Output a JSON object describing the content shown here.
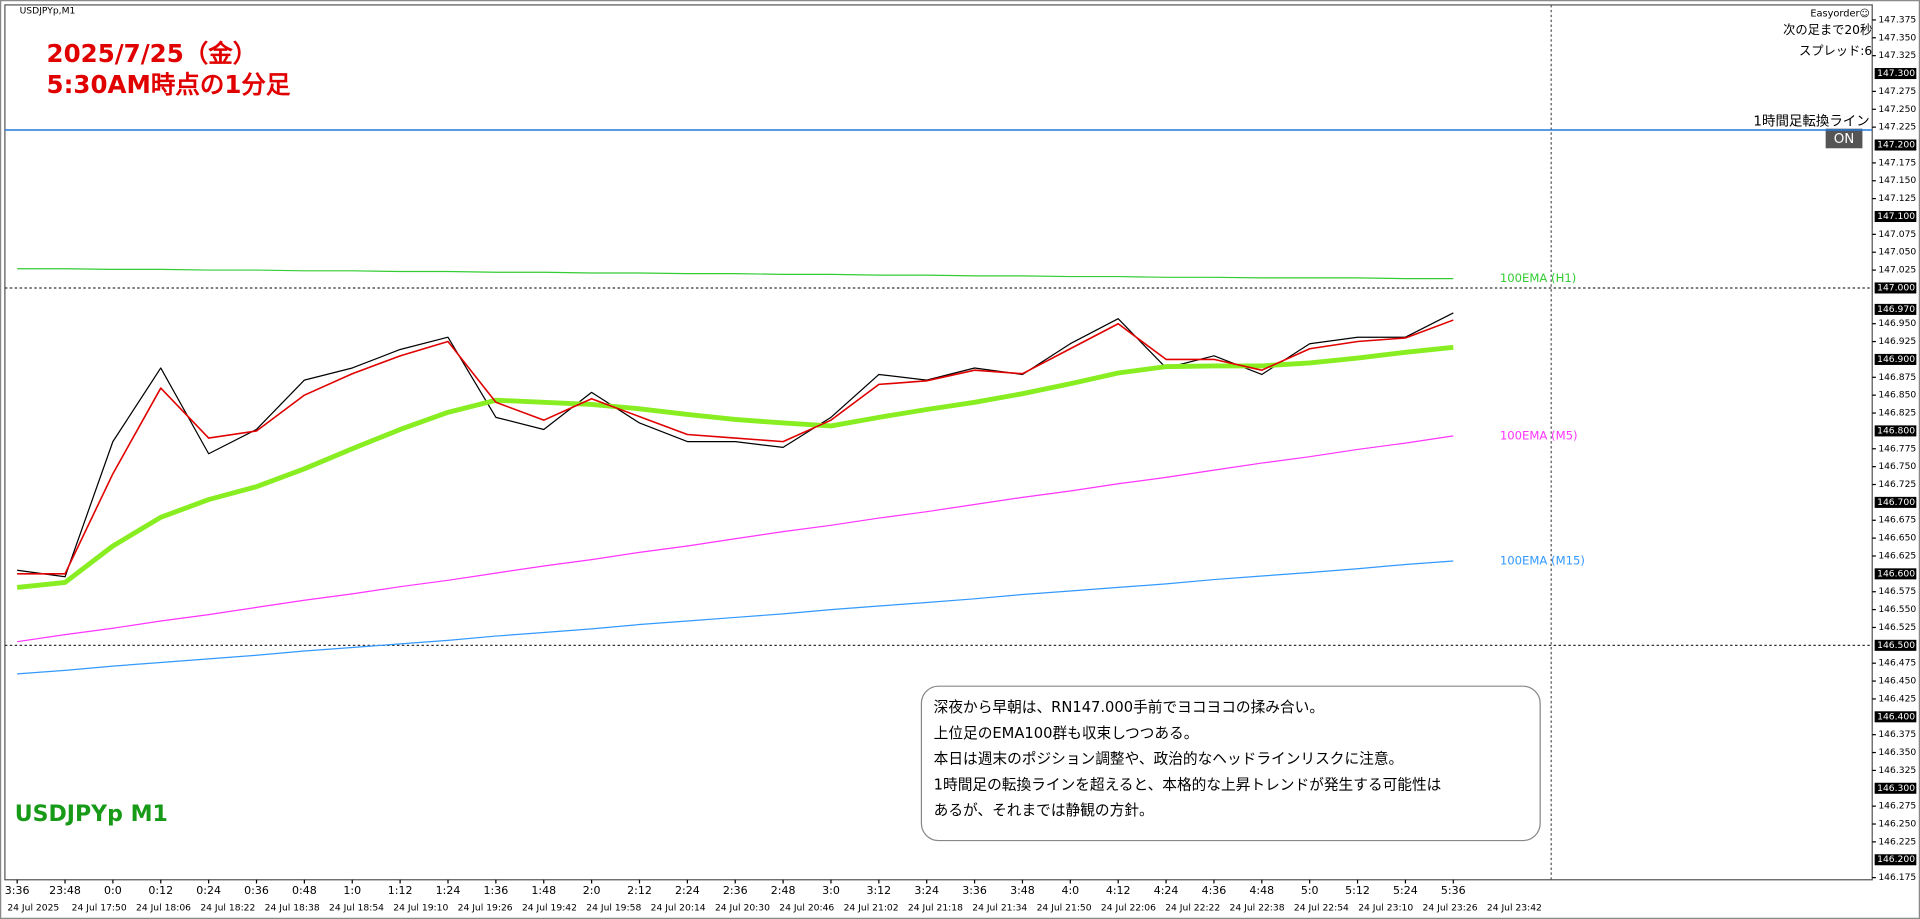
{
  "chart_data": {
    "type": "line",
    "symbol": "USDJPYp,M1",
    "title": "2025/7/25（金）",
    "subtitle": "5:30AM時点の1分足",
    "watermark": "USDJPYp M1",
    "panel": {
      "name": "Easyorder☺",
      "countdown": "次の足まで20秒",
      "spread": "スプレッド:6"
    },
    "button": "ON",
    "annotation": [
      "深夜から早朝は、RN147.000手前でヨコヨコの揉み合い。",
      "上位足のEMA100群も収束しつつある。",
      "本日は週末のポジション調整や、政治的なヘッドラインリスクに注意。",
      "1時間足の転換ラインを超えると、本格的な上昇トレンドが発生する可能性は",
      "あるが、それまでは静観の方針。"
    ],
    "categories": [
      "3:36",
      "23:48",
      "0:0",
      "0:12",
      "0:24",
      "0:36",
      "0:48",
      "1:0",
      "1:12",
      "1:24",
      "1:36",
      "1:48",
      "2:0",
      "2:12",
      "2:24",
      "2:36",
      "2:48",
      "3:0",
      "3:12",
      "3:24",
      "3:36",
      "3:48",
      "4:0",
      "4:12",
      "4:24",
      "4:36",
      "4:48",
      "5:0",
      "5:12",
      "5:24",
      "5:36"
    ],
    "x_labels_2": [
      "24 Jul 2025",
      "24 Jul 17:50",
      "24 Jul 18:06",
      "24 Jul 18:22",
      "24 Jul 18:38",
      "24 Jul 18:54",
      "24 Jul 19:10",
      "24 Jul 19:26",
      "24 Jul 19:42",
      "24 Jul 19:58",
      "24 Jul 20:14",
      "24 Jul 20:30",
      "24 Jul 20:46",
      "24 Jul 21:02",
      "24 Jul 21:18",
      "24 Jul 21:34",
      "24 Jul 21:50",
      "24 Jul 22:06",
      "24 Jul 22:22",
      "24 Jul 22:38",
      "24 Jul 22:54",
      "24 Jul 23:10",
      "24 Jul 23:26",
      "24 Jul 23:42"
    ],
    "ylim": [
      146.172,
      147.396
    ],
    "grid": false,
    "yticks": [
      {
        "value": 147.375,
        "label": "147.375"
      },
      {
        "value": 147.35,
        "label": "147.350"
      },
      {
        "value": 147.325,
        "label": "147.325"
      },
      {
        "value": 147.275,
        "label": "147.275"
      },
      {
        "value": 147.25,
        "label": "147.250"
      },
      {
        "value": 147.225,
        "label": "147.225"
      },
      {
        "value": 147.175,
        "label": "147.175"
      },
      {
        "value": 147.15,
        "label": "147.150"
      },
      {
        "value": 147.125,
        "label": "147.125"
      },
      {
        "value": 147.075,
        "label": "147.075"
      },
      {
        "value": 147.05,
        "label": "147.050"
      },
      {
        "value": 147.025,
        "label": "147.025"
      },
      {
        "value": 146.95,
        "label": "146.950"
      },
      {
        "value": 146.925,
        "label": "146.925"
      },
      {
        "value": 146.875,
        "label": "146.875"
      },
      {
        "value": 146.85,
        "label": "146.850"
      },
      {
        "value": 146.825,
        "label": "146.825"
      },
      {
        "value": 146.775,
        "label": "146.775"
      },
      {
        "value": 146.75,
        "label": "146.750"
      },
      {
        "value": 146.725,
        "label": "146.725"
      },
      {
        "value": 146.675,
        "label": "146.675"
      },
      {
        "value": 146.65,
        "label": "146.650"
      },
      {
        "value": 146.625,
        "label": "146.625"
      },
      {
        "value": 146.575,
        "label": "146.575"
      },
      {
        "value": 146.55,
        "label": "146.550"
      },
      {
        "value": 146.525,
        "label": "146.525"
      },
      {
        "value": 146.475,
        "label": "146.475"
      },
      {
        "value": 146.45,
        "label": "146.450"
      },
      {
        "value": 146.425,
        "label": "146.425"
      },
      {
        "value": 146.375,
        "label": "146.375"
      },
      {
        "value": 146.35,
        "label": "146.350"
      },
      {
        "value": 146.325,
        "label": "146.325"
      },
      {
        "value": 146.275,
        "label": "146.275"
      },
      {
        "value": 146.25,
        "label": "146.250"
      },
      {
        "value": 146.225,
        "label": "146.225"
      },
      {
        "value": 146.175,
        "label": "146.175"
      }
    ],
    "level_labels": [
      {
        "value": 147.3,
        "label": "147.300"
      },
      {
        "value": 147.2,
        "label": "147.200"
      },
      {
        "value": 147.1,
        "label": "147.100"
      },
      {
        "value": 147,
        "label": "147.000"
      },
      {
        "value": 146.97,
        "label": "146.970"
      },
      {
        "value": 146.9,
        "label": "146.900"
      },
      {
        "value": 146.8,
        "label": "146.800"
      },
      {
        "value": 146.7,
        "label": "146.700"
      },
      {
        "value": 146.6,
        "label": "146.600"
      },
      {
        "value": 146.5,
        "label": "146.500"
      },
      {
        "value": 146.4,
        "label": "146.400"
      },
      {
        "value": 146.3,
        "label": "146.300"
      },
      {
        "value": 146.2,
        "label": "146.200"
      }
    ],
    "hlines": [
      {
        "name": "1時間足転換ライン",
        "value": 147.221,
        "color": "#1f78e0"
      }
    ],
    "dotted_levels": [
      147,
      146.5
    ],
    "series": [
      {
        "color": "#33cc33",
        "width": 1,
        "name": "100EMA (H1)",
        "values": [
          147.027,
          147.027,
          147.026,
          147.026,
          147.025,
          147.025,
          147.024,
          147.024,
          147.023,
          147.023,
          147.022,
          147.022,
          147.021,
          147.021,
          147.02,
          147.02,
          147.019,
          147.019,
          147.018,
          147.018,
          147.017,
          147.017,
          147.016,
          147.016,
          147.015,
          147.015,
          147.014,
          147.014,
          147.014,
          147.013,
          147.013
        ]
      },
      {
        "color": "#ff33ff",
        "width": 1,
        "name": "100EMA (M5)",
        "values": [
          146.505,
          146.515,
          146.524,
          146.534,
          146.543,
          146.553,
          146.563,
          146.572,
          146.582,
          146.591,
          146.601,
          146.611,
          146.62,
          146.63,
          146.639,
          146.649,
          146.659,
          146.668,
          146.678,
          146.687,
          146.697,
          146.707,
          146.716,
          146.726,
          146.735,
          146.745,
          146.755,
          146.764,
          146.774,
          146.783,
          146.793
        ]
      },
      {
        "color": "#3399ff",
        "width": 1,
        "name": "100EMA (M15)",
        "values": [
          146.46,
          146.465,
          146.471,
          146.476,
          146.481,
          146.486,
          146.492,
          146.497,
          146.502,
          146.507,
          146.513,
          146.518,
          146.523,
          146.529,
          146.534,
          146.539,
          146.544,
          146.55,
          146.555,
          146.56,
          146.565,
          146.571,
          146.576,
          146.581,
          146.586,
          146.592,
          146.597,
          146.602,
          146.607,
          146.613,
          146.618
        ]
      },
      {
        "color": "#000000",
        "width": 1,
        "values": [
          146.605,
          146.596,
          146.785,
          146.888,
          146.768,
          146.802,
          146.871,
          146.888,
          146.914,
          146.931,
          146.819,
          146.802,
          146.854,
          146.811,
          146.785,
          146.785,
          146.777,
          146.819,
          146.879,
          146.871,
          146.888,
          146.879,
          146.922,
          146.957,
          146.888,
          146.905,
          146.879,
          146.922,
          146.931,
          146.931,
          146.965
        ]
      },
      {
        "color": "#88ee22",
        "width": 4,
        "values": [
          146.581,
          146.588,
          146.639,
          146.679,
          146.704,
          146.722,
          146.747,
          146.775,
          146.802,
          146.826,
          146.843,
          146.84,
          146.837,
          146.831,
          146.823,
          146.816,
          146.811,
          146.807,
          146.819,
          146.83,
          146.84,
          146.852,
          146.866,
          146.881,
          146.89,
          146.891,
          146.891,
          146.895,
          146.902,
          146.91,
          146.917
        ]
      },
      {
        "color": "#e00000",
        "width": 1.3,
        "values": [
          146.6,
          146.6,
          146.74,
          146.86,
          146.79,
          146.8,
          146.85,
          146.88,
          146.905,
          146.925,
          146.84,
          146.815,
          146.845,
          146.82,
          146.795,
          146.79,
          146.785,
          146.815,
          146.865,
          146.87,
          146.885,
          146.88,
          146.915,
          146.95,
          146.9,
          146.9,
          146.885,
          146.915,
          146.925,
          146.93,
          146.955
        ]
      }
    ]
  }
}
